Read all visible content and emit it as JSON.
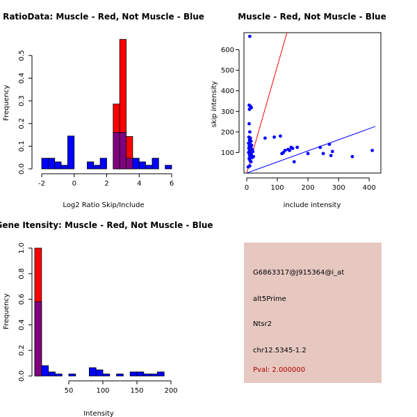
{
  "colors": {
    "red": "#ff0000",
    "blue": "#0000ff",
    "purple": "#800080",
    "infobox_bg": "#e6c8c0",
    "pval": "#b00000"
  },
  "chart_data": [
    {
      "id": "ratio-hist",
      "type": "bar",
      "title": "RatioData: Muscle - Red, Not Muscle - Blue",
      "xlabel": "Log2 Ratio Skip/Include",
      "ylabel": "Frequency",
      "xlim": [
        -2,
        6
      ],
      "ylim": [
        0,
        0.57
      ],
      "xticks": [
        -2,
        0,
        2,
        4,
        6
      ],
      "yticks": [
        0.0,
        0.1,
        0.2,
        0.3,
        0.4,
        0.5
      ],
      "binwidth": 0.4,
      "series": [
        {
          "name": "Not Muscle",
          "color": "blue",
          "bins": [
            [
              -2.0,
              0.047
            ],
            [
              -1.6,
              0.047
            ],
            [
              -1.2,
              0.031
            ],
            [
              -0.8,
              0.016
            ],
            [
              -0.4,
              0.145
            ],
            [
              0.8,
              0.031
            ],
            [
              1.2,
              0.016
            ],
            [
              1.6,
              0.047
            ],
            [
              2.4,
              0.161
            ],
            [
              2.8,
              0.161
            ],
            [
              3.2,
              0.047
            ],
            [
              3.6,
              0.047
            ],
            [
              4.0,
              0.031
            ],
            [
              4.4,
              0.016
            ],
            [
              4.8,
              0.047
            ],
            [
              5.6,
              0.016
            ]
          ]
        },
        {
          "name": "Muscle",
          "color": "red",
          "bins": [
            [
              2.4,
              0.286
            ],
            [
              2.8,
              0.571
            ],
            [
              3.2,
              0.143
            ]
          ]
        }
      ]
    },
    {
      "id": "scatter",
      "type": "scatter",
      "title": "Muscle - Red, Not Muscle - Blue",
      "xlabel": "include intensity",
      "ylabel": "skip intensity",
      "xlim": [
        0,
        420
      ],
      "ylim": [
        0,
        700
      ],
      "xticks": [
        0,
        100,
        200,
        300,
        400
      ],
      "yticks": [
        100,
        200,
        300,
        400,
        500,
        600
      ],
      "lines": [
        {
          "color": "red",
          "slope": 5.2,
          "intercept": 0
        },
        {
          "color": "blue",
          "slope": 0.54,
          "intercept": 0
        }
      ],
      "points": [
        [
          10,
          665
        ],
        [
          8,
          330
        ],
        [
          12,
          325
        ],
        [
          15,
          318
        ],
        [
          9,
          310
        ],
        [
          8,
          240
        ],
        [
          10,
          200
        ],
        [
          7,
          175
        ],
        [
          12,
          170
        ],
        [
          9,
          160
        ],
        [
          14,
          155
        ],
        [
          6,
          145
        ],
        [
          11,
          140
        ],
        [
          16,
          135
        ],
        [
          8,
          130
        ],
        [
          13,
          125
        ],
        [
          7,
          120
        ],
        [
          18,
          115
        ],
        [
          10,
          110
        ],
        [
          20,
          105
        ],
        [
          6,
          100
        ],
        [
          12,
          95
        ],
        [
          15,
          90
        ],
        [
          9,
          85
        ],
        [
          22,
          80
        ],
        [
          17,
          75
        ],
        [
          8,
          70
        ],
        [
          11,
          60
        ],
        [
          14,
          55
        ],
        [
          10,
          35
        ],
        [
          5,
          30
        ],
        [
          60,
          170
        ],
        [
          90,
          175
        ],
        [
          110,
          180
        ],
        [
          115,
          95
        ],
        [
          120,
          100
        ],
        [
          125,
          110
        ],
        [
          135,
          115
        ],
        [
          140,
          110
        ],
        [
          150,
          120
        ],
        [
          145,
          125
        ],
        [
          155,
          55
        ],
        [
          165,
          125
        ],
        [
          200,
          95
        ],
        [
          240,
          125
        ],
        [
          250,
          95
        ],
        [
          270,
          140
        ],
        [
          275,
          85
        ],
        [
          280,
          105
        ],
        [
          345,
          80
        ],
        [
          410,
          110
        ]
      ]
    },
    {
      "id": "intensity-hist",
      "type": "bar",
      "title": "Gene Itensity: Muscle - Red, Not Muscle - Blue",
      "xlabel": "Intensity",
      "ylabel": "Frequency",
      "xlim": [
        0,
        200
      ],
      "ylim": [
        0,
        1.0
      ],
      "xticks": [
        50,
        100,
        150,
        200
      ],
      "yticks": [
        0.0,
        0.2,
        0.4,
        0.6,
        0.8,
        1.0
      ],
      "binwidth": 10,
      "series": [
        {
          "name": "Not Muscle",
          "color": "blue",
          "bins": [
            [
              0,
              0.581
            ],
            [
              10,
              0.081
            ],
            [
              20,
              0.032
            ],
            [
              30,
              0.016
            ],
            [
              50,
              0.016
            ],
            [
              80,
              0.065
            ],
            [
              90,
              0.048
            ],
            [
              100,
              0.016
            ],
            [
              120,
              0.016
            ],
            [
              140,
              0.032
            ],
            [
              150,
              0.032
            ],
            [
              160,
              0.016
            ],
            [
              170,
              0.016
            ],
            [
              180,
              0.032
            ]
          ]
        },
        {
          "name": "Muscle",
          "color": "red",
          "bins": [
            [
              0,
              1.0
            ]
          ]
        }
      ]
    }
  ],
  "info": {
    "probe": "G6863317@J915364@i_at",
    "event": "alt5Prime",
    "gene": "Ntsr2",
    "location": "chr12.5345-1.2",
    "pval": "Pval: 2.000000"
  }
}
